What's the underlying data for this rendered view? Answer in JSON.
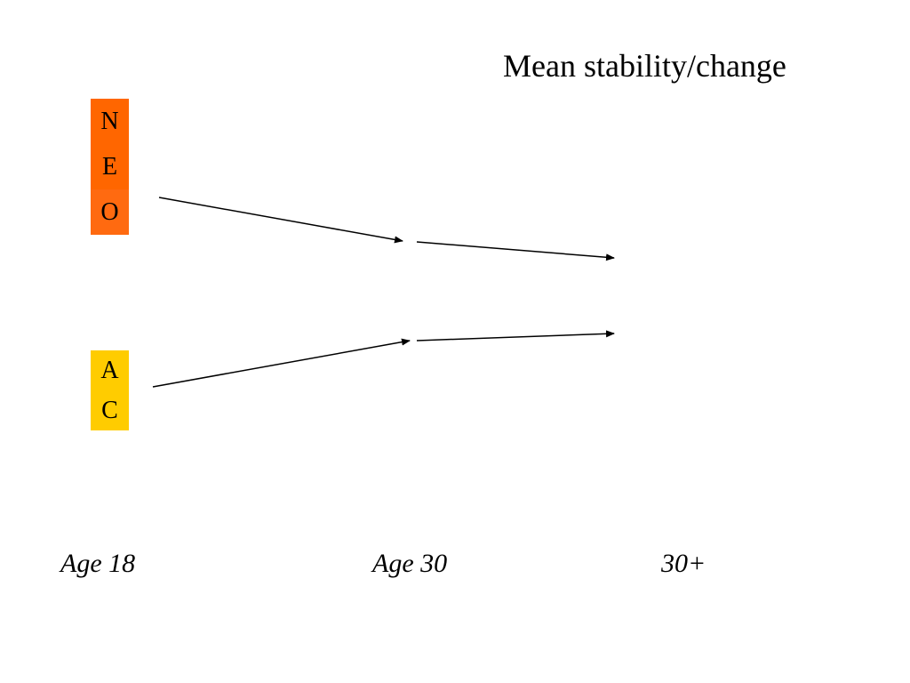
{
  "title": "Mean stability/change",
  "groups": {
    "decreasing": {
      "letters": [
        "N",
        "E",
        "O"
      ],
      "color": "#ff6600"
    },
    "increasing": {
      "letters": [
        "A",
        "C"
      ],
      "color": "#ffcc00"
    }
  },
  "ages": {
    "first": "Age 18",
    "second": "Age 30",
    "third": "30+"
  },
  "arrow_color": "#000000"
}
